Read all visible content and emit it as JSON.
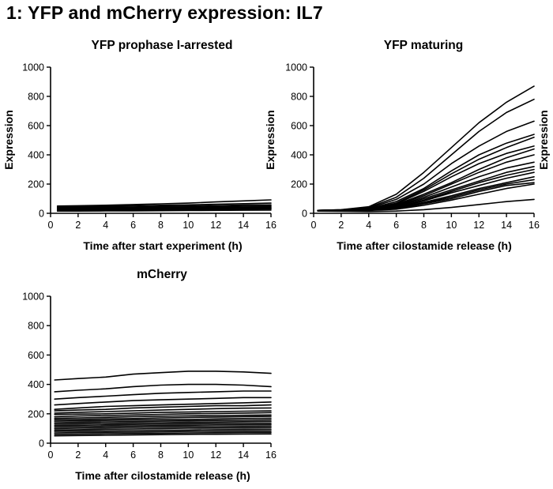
{
  "title": "1: YFP and mCherry expression: IL7",
  "chart_data": [
    {
      "type": "line",
      "title": "YFP prophase I-arrested",
      "xlabel": "Time after start experiment (h)",
      "ylabel": "Expression",
      "xlim": [
        0,
        16
      ],
      "ylim": [
        0,
        1000
      ],
      "xticks": [
        0,
        2,
        4,
        6,
        8,
        10,
        12,
        14,
        16
      ],
      "yticks": [
        0,
        200,
        400,
        600,
        800,
        1000
      ],
      "grid": false,
      "x": [
        0.5,
        2,
        4,
        6,
        8,
        10,
        12,
        14,
        16
      ],
      "series": [
        {
          "values": [
            50,
            52,
            55,
            60,
            65,
            70,
            78,
            85,
            92
          ]
        },
        {
          "values": [
            45,
            46,
            48,
            52,
            55,
            58,
            62,
            66,
            70
          ]
        },
        {
          "values": [
            40,
            40,
            42,
            44,
            47,
            50,
            53,
            56,
            58
          ]
        },
        {
          "values": [
            35,
            36,
            37,
            39,
            41,
            43,
            45,
            48,
            50
          ]
        },
        {
          "values": [
            30,
            31,
            32,
            34,
            35,
            37,
            39,
            41,
            43
          ]
        },
        {
          "values": [
            25,
            26,
            27,
            28,
            30,
            31,
            33,
            35,
            37
          ]
        },
        {
          "values": [
            20,
            21,
            22,
            23,
            24,
            25,
            27,
            28,
            30
          ]
        },
        {
          "values": [
            15,
            15,
            16,
            17,
            18,
            19,
            20,
            21,
            22
          ]
        }
      ]
    },
    {
      "type": "line",
      "title": "YFP maturing",
      "xlabel": "Time after cilostamide release (h)",
      "ylabel": "Expression",
      "xlim": [
        0,
        16
      ],
      "ylim": [
        0,
        1000
      ],
      "xticks": [
        0,
        2,
        4,
        6,
        8,
        10,
        12,
        14,
        16
      ],
      "yticks": [
        0,
        200,
        400,
        600,
        800,
        1000
      ],
      "grid": false,
      "x": [
        0.3,
        2,
        4,
        6,
        8,
        10,
        12,
        14,
        16
      ],
      "series": [
        {
          "values": [
            20,
            25,
            45,
            130,
            280,
            450,
            620,
            760,
            870
          ]
        },
        {
          "values": [
            20,
            24,
            40,
            110,
            240,
            400,
            560,
            690,
            780
          ]
        },
        {
          "values": [
            20,
            23,
            35,
            95,
            200,
            340,
            460,
            560,
            630
          ]
        },
        {
          "values": [
            20,
            22,
            30,
            80,
            170,
            290,
            400,
            480,
            540
          ]
        },
        {
          "values": [
            20,
            22,
            28,
            70,
            160,
            270,
            370,
            450,
            520
          ]
        },
        {
          "values": [
            20,
            22,
            28,
            65,
            150,
            250,
            340,
            410,
            460
          ]
        },
        {
          "values": [
            20,
            21,
            26,
            60,
            130,
            210,
            300,
            380,
            440
          ]
        },
        {
          "values": [
            20,
            21,
            25,
            55,
            120,
            200,
            280,
            350,
            400
          ]
        },
        {
          "values": [
            20,
            21,
            24,
            50,
            110,
            180,
            250,
            310,
            350
          ]
        },
        {
          "values": [
            20,
            20,
            23,
            45,
            100,
            160,
            220,
            280,
            320
          ]
        },
        {
          "values": [
            20,
            20,
            22,
            40,
            90,
            150,
            210,
            260,
            300
          ]
        },
        {
          "values": [
            20,
            20,
            22,
            38,
            85,
            140,
            190,
            240,
            280
          ]
        },
        {
          "values": [
            20,
            20,
            21,
            35,
            75,
            120,
            170,
            210,
            250
          ]
        },
        {
          "values": [
            20,
            20,
            21,
            33,
            70,
            110,
            160,
            200,
            230
          ]
        },
        {
          "values": [
            20,
            20,
            21,
            30,
            65,
            100,
            150,
            190,
            210
          ]
        },
        {
          "values": [
            20,
            20,
            20,
            28,
            55,
            90,
            130,
            170,
            200
          ]
        },
        {
          "values": [
            15,
            14,
            12,
            15,
            25,
            40,
            60,
            80,
            95
          ]
        }
      ]
    },
    {
      "type": "line",
      "title": "mCherry",
      "xlabel": "Time after cilostamide release (h)",
      "ylabel": "",
      "xlim": [
        0,
        16
      ],
      "ylim": [
        0,
        1000
      ],
      "xticks": [
        0,
        2,
        4,
        6,
        8,
        10,
        12,
        14,
        16
      ],
      "yticks": [
        0,
        200,
        400,
        600,
        800,
        1000
      ],
      "grid": false,
      "x": [
        0.3,
        2,
        4,
        6,
        8,
        10,
        12,
        14,
        16
      ],
      "series": [
        {
          "values": [
            430,
            440,
            450,
            470,
            480,
            490,
            490,
            485,
            475
          ]
        },
        {
          "values": [
            350,
            360,
            370,
            385,
            395,
            400,
            400,
            395,
            385
          ]
        },
        {
          "values": [
            300,
            310,
            320,
            330,
            340,
            345,
            350,
            355,
            355
          ]
        },
        {
          "values": [
            260,
            270,
            280,
            290,
            295,
            300,
            305,
            310,
            310
          ]
        },
        {
          "values": [
            230,
            240,
            250,
            255,
            260,
            265,
            270,
            275,
            280
          ]
        },
        {
          "values": [
            220,
            225,
            230,
            240,
            245,
            250,
            255,
            255,
            260
          ]
        },
        {
          "values": [
            205,
            210,
            215,
            220,
            225,
            230,
            235,
            238,
            240
          ]
        },
        {
          "values": [
            195,
            198,
            200,
            205,
            210,
            212,
            215,
            218,
            220
          ]
        },
        {
          "values": [
            180,
            185,
            188,
            192,
            196,
            200,
            202,
            205,
            208
          ]
        },
        {
          "values": [
            170,
            172,
            176,
            180,
            184,
            186,
            188,
            190,
            192
          ]
        },
        {
          "values": [
            160,
            162,
            165,
            168,
            172,
            175,
            178,
            180,
            182
          ]
        },
        {
          "values": [
            150,
            152,
            155,
            158,
            160,
            162,
            165,
            168,
            170
          ]
        },
        {
          "values": [
            140,
            142,
            145,
            148,
            150,
            152,
            155,
            156,
            158
          ]
        },
        {
          "values": [
            130,
            132,
            135,
            138,
            140,
            142,
            144,
            146,
            148
          ]
        },
        {
          "values": [
            120,
            122,
            125,
            128,
            130,
            132,
            134,
            135,
            136
          ]
        },
        {
          "values": [
            110,
            112,
            115,
            118,
            120,
            122,
            124,
            125,
            126
          ]
        },
        {
          "values": [
            100,
            102,
            105,
            108,
            110,
            112,
            113,
            114,
            115
          ]
        },
        {
          "values": [
            90,
            92,
            95,
            97,
            100,
            102,
            103,
            104,
            105
          ]
        },
        {
          "values": [
            80,
            82,
            84,
            86,
            88,
            90,
            92,
            93,
            94
          ]
        },
        {
          "values": [
            70,
            72,
            74,
            76,
            78,
            80,
            81,
            82,
            83
          ]
        },
        {
          "values": [
            60,
            62,
            64,
            66,
            68,
            70,
            71,
            72,
            73
          ]
        },
        {
          "values": [
            50,
            52,
            54,
            56,
            58,
            60,
            61,
            62,
            63
          ]
        }
      ]
    }
  ]
}
